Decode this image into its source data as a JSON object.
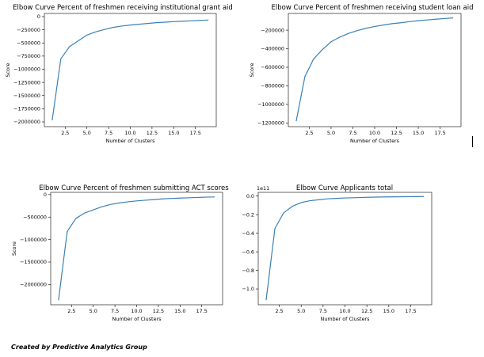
{
  "footer_text": "Created by Predictive Analytics Group",
  "chart_data": [
    {
      "type": "line",
      "title": "Elbow Curve Percent of freshmen receiving institutional grant aid",
      "xlabel": "Number of Clusters",
      "ylabel": "Score",
      "xlim": [
        0.1,
        19.9
      ],
      "ylim": [
        -2090000,
        60000
      ],
      "x_ticks": [
        2.5,
        5.0,
        7.5,
        10.0,
        12.5,
        15.0,
        17.5
      ],
      "x_tick_labels": [
        "2.5",
        "5.0",
        "7.5",
        "10.0",
        "12.5",
        "15.0",
        "17.5"
      ],
      "y_ticks": [
        0,
        -250000,
        -500000,
        -750000,
        -1000000,
        -1250000,
        -1500000,
        -1750000,
        -2000000
      ],
      "y_tick_labels": [
        "0",
        "−250000",
        "−500000",
        "−750000",
        "−1000000",
        "−1250000",
        "−1500000",
        "−1750000",
        "−2000000"
      ],
      "offset_label": "",
      "color": "#3b80b5",
      "x": [
        1,
        2,
        3,
        4,
        5,
        6,
        7,
        8,
        9,
        10,
        11,
        12,
        13,
        14,
        15,
        16,
        17,
        18,
        19
      ],
      "y": [
        -1970000,
        -800000,
        -570000,
        -460000,
        -350000,
        -290000,
        -245000,
        -205000,
        -180000,
        -160000,
        -145000,
        -130000,
        -115000,
        -105000,
        -95000,
        -88000,
        -80000,
        -72000,
        -65000
      ]
    },
    {
      "type": "line",
      "title": "Elbow Curve Percent of freshmen receiving student loan aid",
      "xlabel": "Number of Clusters",
      "ylabel": "Score",
      "xlim": [
        0.1,
        19.9
      ],
      "ylim": [
        -1240000,
        -20000
      ],
      "x_ticks": [
        2.5,
        5.0,
        7.5,
        10.0,
        12.5,
        15.0,
        17.5
      ],
      "x_tick_labels": [
        "2.5",
        "5.0",
        "7.5",
        "10.0",
        "12.5",
        "15.0",
        "17.5"
      ],
      "y_ticks": [
        -200000,
        -400000,
        -600000,
        -800000,
        -1000000,
        -1200000
      ],
      "y_tick_labels": [
        "−200000",
        "−400000",
        "−600000",
        "−800000",
        "−1000000",
        "−1200000"
      ],
      "offset_label": "",
      "color": "#3b80b5",
      "x": [
        1,
        2,
        3,
        4,
        5,
        6,
        7,
        8,
        9,
        10,
        11,
        12,
        13,
        14,
        15,
        16,
        17,
        18,
        19
      ],
      "y": [
        -1180000,
        -700000,
        -510000,
        -410000,
        -325000,
        -275000,
        -235000,
        -205000,
        -180000,
        -160000,
        -145000,
        -130000,
        -120000,
        -108000,
        -98000,
        -90000,
        -82000,
        -75000,
        -68000
      ]
    },
    {
      "type": "line",
      "title": "Elbow Curve Percent of freshmen submitting ACT scores",
      "xlabel": "Number of Clusters",
      "ylabel": "Score",
      "xlim": [
        0.1,
        19.9
      ],
      "ylim": [
        -2450000,
        50000
      ],
      "x_ticks": [
        2.5,
        5.0,
        7.5,
        10.0,
        12.5,
        15.0,
        17.5
      ],
      "x_tick_labels": [
        "2.5",
        "5.0",
        "7.5",
        "10.0",
        "12.5",
        "15.0",
        "17.5"
      ],
      "y_ticks": [
        0,
        -500000,
        -1000000,
        -1500000,
        -2000000
      ],
      "y_tick_labels": [
        "0",
        "−500000",
        "−1000000",
        "−1500000",
        "−2000000"
      ],
      "offset_label": "",
      "color": "#3b80b5",
      "x": [
        1,
        2,
        3,
        4,
        5,
        6,
        7,
        8,
        9,
        10,
        11,
        12,
        13,
        14,
        15,
        16,
        17,
        18,
        19
      ],
      "y": [
        -2350000,
        -820000,
        -530000,
        -410000,
        -340000,
        -270000,
        -220000,
        -185000,
        -160000,
        -140000,
        -125000,
        -110000,
        -95000,
        -85000,
        -78000,
        -70000,
        -63000,
        -57000,
        -52000
      ]
    },
    {
      "type": "line",
      "title": "Elbow Curve Applicants total",
      "xlabel": "Number of Clusters",
      "ylabel": "",
      "xlim": [
        0.1,
        19.9
      ],
      "ylim": [
        -1.17,
        0.04
      ],
      "x_ticks": [
        2.5,
        5.0,
        7.5,
        10.0,
        12.5,
        15.0,
        17.5
      ],
      "x_tick_labels": [
        "2.5",
        "5.0",
        "7.5",
        "10.0",
        "12.5",
        "15.0",
        "17.5"
      ],
      "y_ticks": [
        0.0,
        -0.2,
        -0.4,
        -0.6,
        -0.8,
        -1.0
      ],
      "y_tick_labels": [
        "0.0",
        "−0.2",
        "−0.4",
        "−0.6",
        "−0.8",
        "−1.0"
      ],
      "offset_label": "1e11",
      "color": "#3b80b5",
      "x": [
        1,
        2,
        3,
        4,
        5,
        6,
        7,
        8,
        9,
        10,
        11,
        12,
        13,
        14,
        15,
        16,
        17,
        18,
        19
      ],
      "y": [
        -1.12,
        -0.35,
        -0.18,
        -0.11,
        -0.07,
        -0.05,
        -0.04,
        -0.03,
        -0.025,
        -0.02,
        -0.018,
        -0.015,
        -0.012,
        -0.01,
        -0.009,
        -0.008,
        -0.007,
        -0.006,
        -0.005
      ]
    }
  ]
}
